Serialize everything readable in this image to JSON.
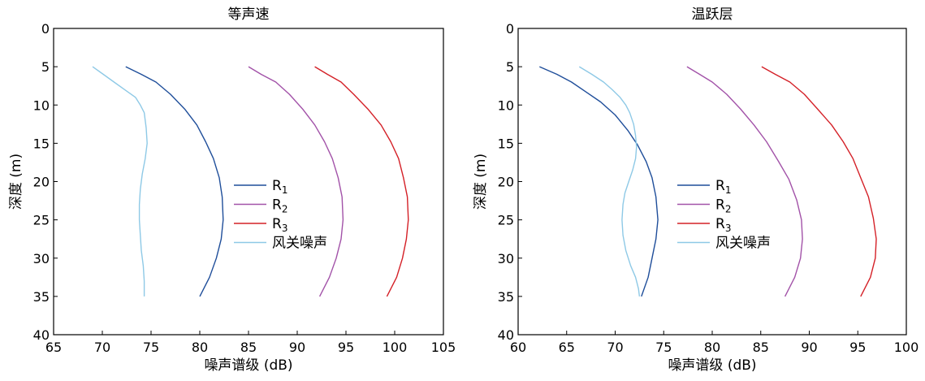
{
  "chart_data": [
    {
      "type": "line",
      "title": "等声速",
      "xlabel": "噪声谱级 (dB)",
      "ylabel": "深度 (m)",
      "xlim": [
        65,
        105
      ],
      "ylim": [
        0,
        40
      ],
      "y_inverted": true,
      "xticks": [
        "65",
        "70",
        "75",
        "80",
        "85",
        "90",
        "95",
        "100",
        "105"
      ],
      "yticks": [
        "0",
        "5",
        "10",
        "15",
        "20",
        "25",
        "30",
        "35",
        "40"
      ],
      "legend_position": "center-right",
      "series": [
        {
          "name": "R",
          "sub": "1",
          "color": "#1f4e9a",
          "points": [
            [
              72.4,
              5
            ],
            [
              74,
              6
            ],
            [
              75.5,
              7
            ],
            [
              77,
              8.6
            ],
            [
              78.5,
              10.6
            ],
            [
              79.7,
              12.6
            ],
            [
              80.6,
              14.8
            ],
            [
              81.4,
              17
            ],
            [
              82,
              19.5
            ],
            [
              82.3,
              22
            ],
            [
              82.4,
              25
            ],
            [
              82.2,
              27.5
            ],
            [
              81.7,
              30
            ],
            [
              81,
              32.5
            ],
            [
              80,
              35
            ]
          ]
        },
        {
          "name": "R",
          "sub": "2",
          "color": "#a252a8",
          "points": [
            [
              85,
              5
            ],
            [
              86.3,
              6
            ],
            [
              87.8,
              7
            ],
            [
              89.2,
              8.6
            ],
            [
              90.6,
              10.6
            ],
            [
              91.8,
              12.6
            ],
            [
              92.8,
              14.8
            ],
            [
              93.6,
              17
            ],
            [
              94.2,
              19.5
            ],
            [
              94.6,
              22
            ],
            [
              94.7,
              25
            ],
            [
              94.5,
              27.5
            ],
            [
              94,
              30
            ],
            [
              93.3,
              32.5
            ],
            [
              92.3,
              35
            ]
          ]
        },
        {
          "name": "R",
          "sub": "3",
          "color": "#d42027",
          "points": [
            [
              91.8,
              5
            ],
            [
              93.1,
              6
            ],
            [
              94.5,
              7
            ],
            [
              95.8,
              8.6
            ],
            [
              97.3,
              10.6
            ],
            [
              98.6,
              12.6
            ],
            [
              99.6,
              14.8
            ],
            [
              100.4,
              17
            ],
            [
              100.9,
              19.5
            ],
            [
              101.3,
              22
            ],
            [
              101.4,
              25
            ],
            [
              101.2,
              27.5
            ],
            [
              100.8,
              30
            ],
            [
              100.2,
              32.5
            ],
            [
              99.2,
              35
            ]
          ]
        },
        {
          "name": "风关噪声",
          "color": "#8ec9e6",
          "points": [
            [
              69,
              5
            ],
            [
              70.1,
              6
            ],
            [
              71.2,
              7
            ],
            [
              72.3,
              8
            ],
            [
              73.4,
              9
            ],
            [
              73.9,
              10
            ],
            [
              74.3,
              11
            ],
            [
              74.5,
              13
            ],
            [
              74.6,
              15
            ],
            [
              74.4,
              17
            ],
            [
              74.1,
              19
            ],
            [
              73.9,
              21
            ],
            [
              73.8,
              23
            ],
            [
              73.8,
              25
            ],
            [
              73.9,
              27
            ],
            [
              74,
              29
            ],
            [
              74.2,
              31
            ],
            [
              74.3,
              33
            ],
            [
              74.3,
              35
            ]
          ]
        }
      ]
    },
    {
      "type": "line",
      "title": "温跃层",
      "xlabel": "噪声谱级 (dB)",
      "ylabel": "深度 (m)",
      "xlim": [
        60,
        100
      ],
      "ylim": [
        0,
        40
      ],
      "y_inverted": true,
      "xticks": [
        "60",
        "65",
        "70",
        "75",
        "80",
        "85",
        "90",
        "95",
        "100"
      ],
      "yticks": [
        "0",
        "5",
        "10",
        "15",
        "20",
        "25",
        "30",
        "35",
        "40"
      ],
      "legend_position": "center-right",
      "series": [
        {
          "name": "R",
          "sub": "1",
          "color": "#1f4e9a",
          "points": [
            [
              62.2,
              5
            ],
            [
              64,
              6
            ],
            [
              65.5,
              7
            ],
            [
              67,
              8.3
            ],
            [
              68.5,
              9.6
            ],
            [
              70,
              11.3
            ],
            [
              71.3,
              13.3
            ],
            [
              72.3,
              15.2
            ],
            [
              73.2,
              17.4
            ],
            [
              73.8,
              19.5
            ],
            [
              74.2,
              22
            ],
            [
              74.4,
              25
            ],
            [
              74.2,
              27.5
            ],
            [
              73.8,
              30
            ],
            [
              73.4,
              32.5
            ],
            [
              72.7,
              35
            ]
          ]
        },
        {
          "name": "R",
          "sub": "2",
          "color": "#a252a8",
          "points": [
            [
              77.4,
              5
            ],
            [
              78.7,
              6
            ],
            [
              80,
              7
            ],
            [
              81.5,
              8.6
            ],
            [
              82.9,
              10.5
            ],
            [
              84.3,
              12.6
            ],
            [
              85.6,
              14.8
            ],
            [
              86.8,
              17.3
            ],
            [
              87.9,
              19.7
            ],
            [
              88.7,
              22.4
            ],
            [
              89.2,
              25
            ],
            [
              89.3,
              27.5
            ],
            [
              89.1,
              30
            ],
            [
              88.5,
              32.5
            ],
            [
              87.5,
              35
            ]
          ]
        },
        {
          "name": "R",
          "sub": "3",
          "color": "#d42027",
          "points": [
            [
              85.1,
              5
            ],
            [
              86.5,
              6
            ],
            [
              88,
              7
            ],
            [
              89.5,
              8.6
            ],
            [
              90.9,
              10.6
            ],
            [
              92.3,
              12.6
            ],
            [
              93.5,
              14.8
            ],
            [
              94.5,
              17
            ],
            [
              95.3,
              19.5
            ],
            [
              96.1,
              22
            ],
            [
              96.6,
              24.8
            ],
            [
              96.9,
              27.5
            ],
            [
              96.8,
              30
            ],
            [
              96.3,
              32.5
            ],
            [
              95.3,
              35
            ]
          ]
        },
        {
          "name": "风关噪声",
          "color": "#8ec9e6",
          "points": [
            [
              66.3,
              5
            ],
            [
              67.6,
              6
            ],
            [
              68.8,
              7
            ],
            [
              69.7,
              8
            ],
            [
              70.5,
              9
            ],
            [
              71.1,
              10
            ],
            [
              71.5,
              11
            ],
            [
              71.9,
              12.5
            ],
            [
              72.1,
              14
            ],
            [
              72.2,
              15.5
            ],
            [
              72.1,
              17
            ],
            [
              71.8,
              18.5
            ],
            [
              71.4,
              20
            ],
            [
              71,
              21.5
            ],
            [
              70.8,
              23
            ],
            [
              70.7,
              25
            ],
            [
              70.8,
              27
            ],
            [
              71.1,
              29
            ],
            [
              71.6,
              31
            ],
            [
              72.1,
              32.5
            ],
            [
              72.4,
              34
            ],
            [
              72.5,
              35
            ]
          ]
        }
      ]
    }
  ]
}
